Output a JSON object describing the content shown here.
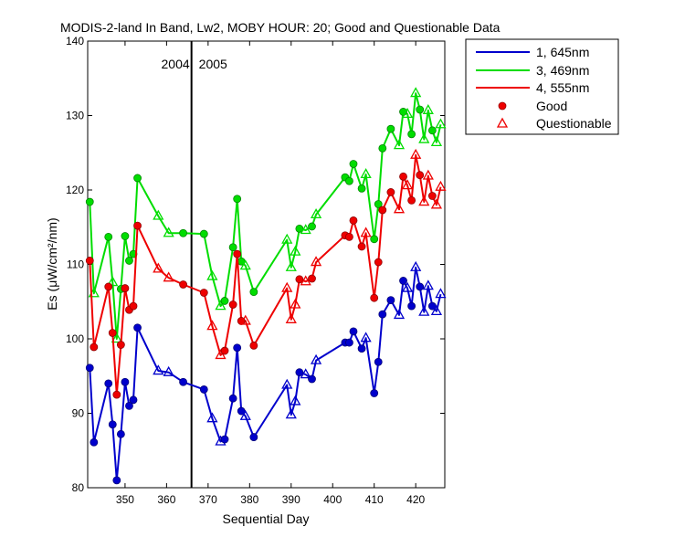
{
  "chart_data": {
    "type": "line",
    "title": "MODIS-2-land In Band,  Lw2, MOBY HOUR: 20;  Good and Questionable Data",
    "xlabel": "Sequential Day",
    "ylabel": "Es (μW/cm²/nm)",
    "xlim": [
      341,
      427
    ],
    "ylim": [
      80,
      140
    ],
    "xticks": [
      350,
      360,
      370,
      380,
      390,
      400,
      410,
      420
    ],
    "yticks": [
      80,
      90,
      100,
      110,
      120,
      130,
      140
    ],
    "grid": false,
    "legend_position": "outside-top-right",
    "year_divider": {
      "x": 366,
      "left_label": "2004",
      "right_label": "2005"
    },
    "legend_markers": {
      "good": "Good",
      "questionable": "Questionable"
    },
    "series": [
      {
        "name": "1, 645nm",
        "color": "#0000cc",
        "points": [
          {
            "x": 341.5,
            "y": 96.1,
            "q": 0
          },
          {
            "x": 342.5,
            "y": 86.1,
            "q": 0
          },
          {
            "x": 346,
            "y": 94.0,
            "q": 0
          },
          {
            "x": 347,
            "y": 88.5,
            "q": 0
          },
          {
            "x": 348,
            "y": 81.0,
            "q": 0
          },
          {
            "x": 349,
            "y": 87.2,
            "q": 0
          },
          {
            "x": 350,
            "y": 94.2,
            "q": 0
          },
          {
            "x": 351,
            "y": 91.0,
            "q": 0
          },
          {
            "x": 352,
            "y": 91.8,
            "q": 0
          },
          {
            "x": 353,
            "y": 101.5,
            "q": 0
          },
          {
            "x": 358,
            "y": 95.7,
            "q": 1
          },
          {
            "x": 360.5,
            "y": 95.5,
            "q": 1
          },
          {
            "x": 364,
            "y": 94.2,
            "q": 0
          },
          {
            "x": 369,
            "y": 93.2,
            "q": 0
          },
          {
            "x": 371,
            "y": 89.3,
            "q": 1
          },
          {
            "x": 373,
            "y": 86.2,
            "q": 1
          },
          {
            "x": 374,
            "y": 86.5,
            "q": 0
          },
          {
            "x": 376,
            "y": 92.0,
            "q": 0
          },
          {
            "x": 377,
            "y": 98.8,
            "q": 0
          },
          {
            "x": 378,
            "y": 90.3,
            "q": 0
          },
          {
            "x": 379,
            "y": 89.6,
            "q": 1
          },
          {
            "x": 381,
            "y": 86.8,
            "q": 0
          },
          {
            "x": 389,
            "y": 93.8,
            "q": 1
          },
          {
            "x": 390,
            "y": 89.8,
            "q": 1
          },
          {
            "x": 391,
            "y": 91.6,
            "q": 1
          },
          {
            "x": 392,
            "y": 95.5,
            "q": 0
          },
          {
            "x": 393.5,
            "y": 95.2,
            "q": 1
          },
          {
            "x": 395,
            "y": 94.6,
            "q": 0
          },
          {
            "x": 396,
            "y": 97.1,
            "q": 1
          },
          {
            "x": 403,
            "y": 99.5,
            "q": 0
          },
          {
            "x": 404,
            "y": 99.5,
            "q": 0
          },
          {
            "x": 405,
            "y": 101.0,
            "q": 0
          },
          {
            "x": 407,
            "y": 98.7,
            "q": 0
          },
          {
            "x": 408,
            "y": 100.1,
            "q": 1
          },
          {
            "x": 410,
            "y": 92.7,
            "q": 0
          },
          {
            "x": 411,
            "y": 96.9,
            "q": 0
          },
          {
            "x": 412,
            "y": 103.3,
            "q": 0
          },
          {
            "x": 414,
            "y": 105.2,
            "q": 0
          },
          {
            "x": 416,
            "y": 103.2,
            "q": 1
          },
          {
            "x": 417,
            "y": 107.8,
            "q": 0
          },
          {
            "x": 418,
            "y": 106.8,
            "q": 1
          },
          {
            "x": 419,
            "y": 104.4,
            "q": 0
          },
          {
            "x": 420,
            "y": 109.6,
            "q": 1
          },
          {
            "x": 421,
            "y": 107.0,
            "q": 0
          },
          {
            "x": 422,
            "y": 103.6,
            "q": 1
          },
          {
            "x": 423,
            "y": 107.1,
            "q": 1
          },
          {
            "x": 424,
            "y": 104.4,
            "q": 0
          },
          {
            "x": 425,
            "y": 103.7,
            "q": 1
          },
          {
            "x": 426,
            "y": 106.0,
            "q": 1
          }
        ]
      },
      {
        "name": "3, 469nm",
        "color": "#00dd00",
        "points": [
          {
            "x": 341.5,
            "y": 118.4,
            "q": 0
          },
          {
            "x": 342.5,
            "y": 106.1,
            "q": 1
          },
          {
            "x": 346,
            "y": 113.7,
            "q": 0
          },
          {
            "x": 347,
            "y": 107.6,
            "q": 1
          },
          {
            "x": 348,
            "y": 100.0,
            "q": 1
          },
          {
            "x": 349,
            "y": 106.7,
            "q": 0
          },
          {
            "x": 350,
            "y": 113.8,
            "q": 0
          },
          {
            "x": 351,
            "y": 110.5,
            "q": 0
          },
          {
            "x": 352,
            "y": 111.4,
            "q": 0
          },
          {
            "x": 353,
            "y": 121.6,
            "q": 0
          },
          {
            "x": 358,
            "y": 116.5,
            "q": 1
          },
          {
            "x": 360.5,
            "y": 114.2,
            "q": 1
          },
          {
            "x": 364,
            "y": 114.2,
            "q": 0
          },
          {
            "x": 369,
            "y": 114.1,
            "q": 0
          },
          {
            "x": 371,
            "y": 108.4,
            "q": 1
          },
          {
            "x": 373,
            "y": 104.4,
            "q": 1
          },
          {
            "x": 374,
            "y": 105.1,
            "q": 0
          },
          {
            "x": 376,
            "y": 112.3,
            "q": 0
          },
          {
            "x": 377,
            "y": 118.8,
            "q": 0
          },
          {
            "x": 378,
            "y": 110.4,
            "q": 0
          },
          {
            "x": 379,
            "y": 109.8,
            "q": 1
          },
          {
            "x": 381,
            "y": 106.3,
            "q": 0
          },
          {
            "x": 389,
            "y": 113.3,
            "q": 1
          },
          {
            "x": 390,
            "y": 109.6,
            "q": 1
          },
          {
            "x": 391,
            "y": 111.7,
            "q": 1
          },
          {
            "x": 392,
            "y": 114.8,
            "q": 0
          },
          {
            "x": 393.5,
            "y": 114.6,
            "q": 1
          },
          {
            "x": 395,
            "y": 115.1,
            "q": 0
          },
          {
            "x": 396,
            "y": 116.7,
            "q": 1
          },
          {
            "x": 403,
            "y": 121.7,
            "q": 0
          },
          {
            "x": 404,
            "y": 121.2,
            "q": 0
          },
          {
            "x": 405,
            "y": 123.5,
            "q": 0
          },
          {
            "x": 407,
            "y": 120.2,
            "q": 0
          },
          {
            "x": 408,
            "y": 122.1,
            "q": 1
          },
          {
            "x": 410,
            "y": 113.4,
            "q": 0
          },
          {
            "x": 411,
            "y": 118.1,
            "q": 0
          },
          {
            "x": 412,
            "y": 125.6,
            "q": 0
          },
          {
            "x": 414,
            "y": 128.2,
            "q": 0
          },
          {
            "x": 416,
            "y": 126.0,
            "q": 1
          },
          {
            "x": 417,
            "y": 130.5,
            "q": 0
          },
          {
            "x": 418,
            "y": 130.2,
            "q": 1
          },
          {
            "x": 419,
            "y": 127.5,
            "q": 0
          },
          {
            "x": 420,
            "y": 133.0,
            "q": 1
          },
          {
            "x": 421,
            "y": 130.8,
            "q": 0
          },
          {
            "x": 422,
            "y": 126.8,
            "q": 1
          },
          {
            "x": 423,
            "y": 130.7,
            "q": 1
          },
          {
            "x": 424,
            "y": 128.0,
            "q": 0
          },
          {
            "x": 425,
            "y": 126.4,
            "q": 1
          },
          {
            "x": 426,
            "y": 128.8,
            "q": 1
          }
        ]
      },
      {
        "name": "4, 555nm",
        "color": "#ee0000",
        "points": [
          {
            "x": 341.5,
            "y": 110.5,
            "q": 0
          },
          {
            "x": 342.5,
            "y": 98.9,
            "q": 0
          },
          {
            "x": 346,
            "y": 107.0,
            "q": 0
          },
          {
            "x": 347,
            "y": 100.8,
            "q": 0
          },
          {
            "x": 348,
            "y": 92.5,
            "q": 0
          },
          {
            "x": 349,
            "y": 99.2,
            "q": 0
          },
          {
            "x": 350,
            "y": 106.8,
            "q": 0
          },
          {
            "x": 351,
            "y": 103.9,
            "q": 0
          },
          {
            "x": 352,
            "y": 104.4,
            "q": 0
          },
          {
            "x": 353,
            "y": 115.2,
            "q": 0
          },
          {
            "x": 358,
            "y": 109.4,
            "q": 1
          },
          {
            "x": 360.5,
            "y": 108.2,
            "q": 1
          },
          {
            "x": 364,
            "y": 107.3,
            "q": 0
          },
          {
            "x": 369,
            "y": 106.2,
            "q": 0
          },
          {
            "x": 371,
            "y": 101.7,
            "q": 1
          },
          {
            "x": 373,
            "y": 97.8,
            "q": 1
          },
          {
            "x": 374,
            "y": 98.4,
            "q": 0
          },
          {
            "x": 376,
            "y": 104.6,
            "q": 0
          },
          {
            "x": 377,
            "y": 111.4,
            "q": 0
          },
          {
            "x": 378,
            "y": 102.4,
            "q": 0
          },
          {
            "x": 379,
            "y": 102.4,
            "q": 1
          },
          {
            "x": 381,
            "y": 99.1,
            "q": 0
          },
          {
            "x": 389,
            "y": 106.8,
            "q": 1
          },
          {
            "x": 390,
            "y": 102.6,
            "q": 1
          },
          {
            "x": 391,
            "y": 104.6,
            "q": 1
          },
          {
            "x": 392,
            "y": 108.0,
            "q": 0
          },
          {
            "x": 393.5,
            "y": 107.7,
            "q": 1
          },
          {
            "x": 395,
            "y": 108.1,
            "q": 0
          },
          {
            "x": 396,
            "y": 110.3,
            "q": 1
          },
          {
            "x": 403,
            "y": 113.9,
            "q": 0
          },
          {
            "x": 404,
            "y": 113.7,
            "q": 0
          },
          {
            "x": 405,
            "y": 115.9,
            "q": 0
          },
          {
            "x": 407,
            "y": 112.4,
            "q": 0
          },
          {
            "x": 408,
            "y": 114.2,
            "q": 1
          },
          {
            "x": 410,
            "y": 105.5,
            "q": 0
          },
          {
            "x": 411,
            "y": 110.3,
            "q": 0
          },
          {
            "x": 412,
            "y": 117.3,
            "q": 0
          },
          {
            "x": 414,
            "y": 119.7,
            "q": 0
          },
          {
            "x": 416,
            "y": 117.4,
            "q": 1
          },
          {
            "x": 417,
            "y": 121.8,
            "q": 0
          },
          {
            "x": 418,
            "y": 120.6,
            "q": 1
          },
          {
            "x": 419,
            "y": 118.6,
            "q": 0
          },
          {
            "x": 420,
            "y": 124.7,
            "q": 1
          },
          {
            "x": 421,
            "y": 122.0,
            "q": 0
          },
          {
            "x": 422,
            "y": 118.4,
            "q": 1
          },
          {
            "x": 423,
            "y": 121.9,
            "q": 1
          },
          {
            "x": 424,
            "y": 119.2,
            "q": 0
          },
          {
            "x": 425,
            "y": 118.0,
            "q": 1
          },
          {
            "x": 426,
            "y": 120.4,
            "q": 1
          }
        ]
      }
    ]
  }
}
